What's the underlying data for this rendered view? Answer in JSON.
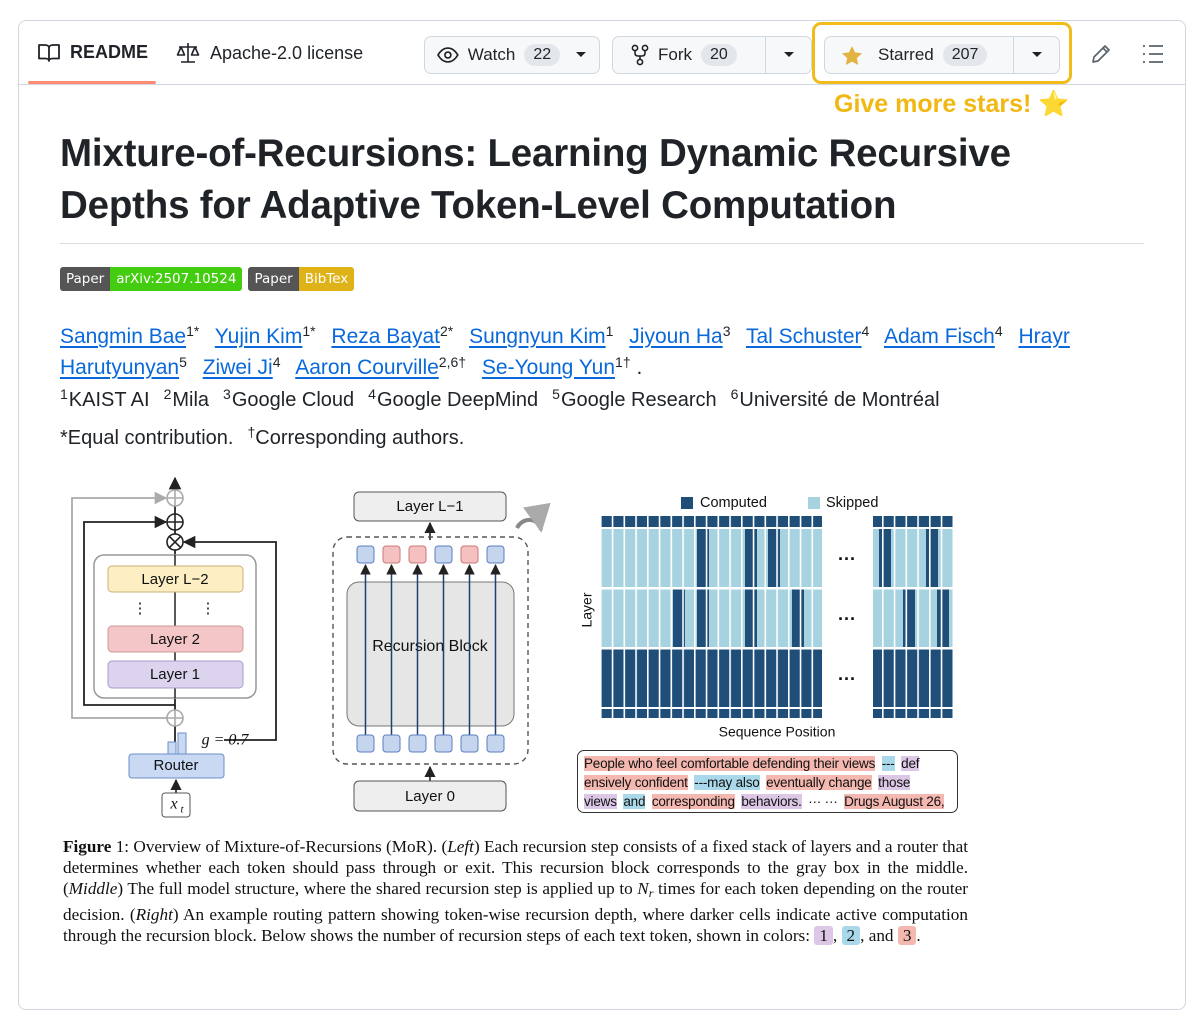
{
  "tabs": {
    "readme": "README",
    "license": "Apache-2.0 license"
  },
  "actions": {
    "watch": {
      "label": "Watch",
      "count": 22
    },
    "fork": {
      "label": "Fork",
      "count": 20
    },
    "star": {
      "label": "Starred",
      "count": 207
    }
  },
  "annotation": "Give more stars! ⭐",
  "title": "Mixture-of-Recursions: Learning Dynamic Recursive Depths for Adaptive Token-Level Computation",
  "badges": [
    {
      "label": "Paper",
      "message": "arXiv:2507.10524",
      "color": "#44cc11"
    },
    {
      "label": "Paper",
      "message": "BibTex",
      "color": "#dfb317"
    }
  ],
  "authors": [
    {
      "name": "Sangmin Bae",
      "sup": "1*"
    },
    {
      "name": "Yujin Kim",
      "sup": "1*"
    },
    {
      "name": "Reza Bayat",
      "sup": "2*"
    },
    {
      "name": "Sungnyun Kim",
      "sup": "1"
    },
    {
      "name": "Jiyoun Ha",
      "sup": "3"
    },
    {
      "name": "Tal Schuster",
      "sup": "4"
    },
    {
      "name": "Adam Fisch",
      "sup": "4"
    },
    {
      "name": "Hrayr Harutyunyan",
      "sup": "5"
    },
    {
      "name": "Ziwei Ji",
      "sup": "4"
    },
    {
      "name": "Aaron Courville",
      "sup": "2,6†"
    },
    {
      "name": "Se-Young Yun",
      "sup": "1†"
    }
  ],
  "authors_end": ".",
  "affiliations": [
    {
      "num": 1,
      "name": "KAIST AI"
    },
    {
      "num": 2,
      "name": "Mila"
    },
    {
      "num": 3,
      "name": "Google Cloud"
    },
    {
      "num": 4,
      "name": "Google DeepMind"
    },
    {
      "num": 5,
      "name": "Google Research"
    },
    {
      "num": 6,
      "name": "Université de Montréal"
    }
  ],
  "notes": [
    {
      "mark": "*",
      "text": "Equal contribution."
    },
    {
      "mark": "†",
      "text": "Corresponding authors."
    }
  ],
  "figure": {
    "left": {
      "layers": [
        "Layer L−2",
        "Layer 2",
        "Layer 1"
      ],
      "dots": [
        "⋮",
        "⋮"
      ],
      "router": "Router",
      "gate": "g = 0.7",
      "input": {
        "base": "x",
        "sub": "t"
      }
    },
    "middle": {
      "top": "Layer L−1",
      "block": "Recursion Block",
      "bottom": "Layer 0"
    },
    "right": {
      "legend": [
        {
          "name": "Computed",
          "color": "#1f4e79"
        },
        {
          "name": "Skipped",
          "color": "#a7d3e0"
        }
      ],
      "y_label": "Layer",
      "x_label": "Sequence Position",
      "ellipses": [
        "···",
        "···",
        "···"
      ]
    },
    "sample": [
      {
        "text": "People who feel comfortable defending their views",
        "color": "#f4b8b0"
      },
      {
        "text": "---",
        "color": "#a8d8ea"
      },
      {
        "text": "def",
        "color": "#dcc8e6"
      },
      {
        "text": "ensively confident",
        "color": "#f4b8b0"
      },
      {
        "text": "---may also",
        "color": "#a8d8ea"
      },
      {
        "text": "eventually change",
        "color": "#f4b8b0"
      },
      {
        "text": "those",
        "color": "#dcc8e6"
      },
      {
        "text": "views",
        "color": "#dcc8e6"
      },
      {
        "text": "and",
        "color": "#a8d8ea"
      },
      {
        "text": "corresponding",
        "color": "#f4b8b0"
      },
      {
        "text": "behaviors.",
        "color": "#dcc8e6"
      },
      {
        "text": "··· ···"
      },
      {
        "text": "Drugs August 26,",
        "color": "#f4b8b0"
      }
    ]
  },
  "caption": [
    {
      "text": "Figure",
      "style": "bold"
    },
    {
      "text": " 1: Overview of Mixture-of-Recursions (MoR). ("
    },
    {
      "text": "Left",
      "style": "italic"
    },
    {
      "text": ") Each recursion step consists of a fixed stack of layers and a router that determines whether each token should pass through or exit. This recursion block corresponds to the gray box in the middle. ("
    },
    {
      "text": "Middle",
      "style": "italic"
    },
    {
      "text": ") The full model structure, where the shared recursion step is applied up to "
    },
    {
      "text": "N",
      "style": "italic"
    },
    {
      "text": "r",
      "style": "sub"
    },
    {
      "text": " times for each token depending on the router decision. ("
    },
    {
      "text": "Right",
      "style": "italic"
    },
    {
      "text": ") An example routing pattern showing token-wise recursion depth, where darker cells indicate active computation through the recursion block. Below shows the number of recursion steps of each text token, shown in colors: "
    },
    {
      "text": "1",
      "style": "box",
      "color": "#dcc8e6"
    },
    {
      "text": ", "
    },
    {
      "text": "2",
      "style": "box",
      "color": "#a8d8ea"
    },
    {
      "text": ", and "
    },
    {
      "text": "3",
      "style": "box",
      "color": "#f4b8b0"
    },
    {
      "text": "."
    }
  ]
}
